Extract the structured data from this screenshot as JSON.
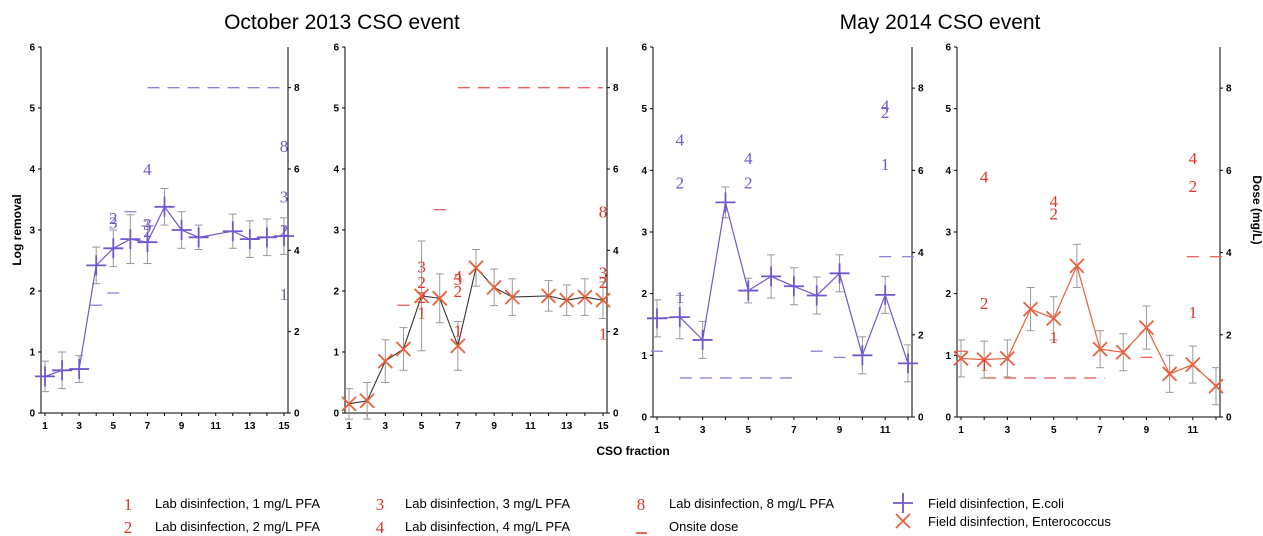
{
  "titles": {
    "left": "October 2013 CSO event",
    "right": "May 2014 CSO event"
  },
  "axis_labels": {
    "y_left": "Log removal",
    "y_right": "Dose (mg/L)",
    "x": "CSO fraction"
  },
  "colors": {
    "ecoli": "#6a5acd",
    "entero": "#e8603c",
    "lab_blue": "#6a5acd",
    "lab_red": "#e0352b",
    "dose_blue": "#8a82d8",
    "dose_red": "#e86060",
    "error_bar": "#999999",
    "axis": "#000000"
  },
  "legend": [
    {
      "symbol": "1",
      "label": "Lab disinfection, 1 mg/L PFA"
    },
    {
      "symbol": "2",
      "label": "Lab disinfection, 2 mg/L PFA"
    },
    {
      "symbol": "3",
      "label": "Lab disinfection, 3 mg/L PFA"
    },
    {
      "symbol": "4",
      "label": "Lab disinfection, 4 mg/L PFA"
    },
    {
      "symbol": "8",
      "label": "Lab disinfection, 8 mg/L PFA"
    },
    {
      "symbol": "dash",
      "label": "Onsite dose"
    },
    {
      "symbol": "plus",
      "label": "Field disinfection, E.coli"
    },
    {
      "symbol": "cross",
      "label": "Field disinfection, Enterococcus"
    }
  ],
  "chart_data": [
    {
      "type": "line",
      "event": "October 2013 CSO event",
      "organism": "E.coli",
      "marker": "plus",
      "xlim": [
        1,
        15
      ],
      "xticks": [
        "1",
        "3",
        "5",
        "7",
        "9",
        "11",
        "13",
        "15"
      ],
      "ylim": [
        0,
        6
      ],
      "yticks": [
        "0",
        "1",
        "2",
        "3",
        "4",
        "5",
        "6"
      ],
      "y2lim": [
        0,
        9
      ],
      "y2ticks": [
        "0",
        "2",
        "4",
        "6",
        "8"
      ],
      "field": {
        "x": [
          1,
          2,
          3,
          4,
          5,
          6,
          7,
          8,
          9,
          10,
          12,
          13,
          14,
          15
        ],
        "y": [
          0.6,
          0.7,
          0.72,
          2.42,
          2.7,
          2.85,
          2.8,
          3.38,
          3.0,
          2.88,
          2.98,
          2.85,
          2.88,
          2.9
        ],
        "err": [
          0.25,
          0.3,
          0.22,
          0.3,
          0.3,
          0.4,
          0.35,
          0.3,
          0.3,
          0.2,
          0.28,
          0.3,
          0.3,
          0.3
        ]
      },
      "lab": [
        {
          "x": 5,
          "label": "2",
          "y": 3.2
        },
        {
          "x": 5,
          "label": "3",
          "y": 3.12
        },
        {
          "x": 7,
          "label": "4",
          "y": 4.0
        },
        {
          "x": 7,
          "label": "3",
          "y": 3.1
        },
        {
          "x": 7,
          "label": "2",
          "y": 2.98
        },
        {
          "x": 15,
          "label": "8",
          "y": 4.38
        },
        {
          "x": 15,
          "label": "3",
          "y": 3.55
        },
        {
          "x": 15,
          "label": "2",
          "y": 3.0
        },
        {
          "x": 15,
          "label": "1",
          "y": 1.95
        }
      ],
      "onsite_dose": [
        {
          "x": 4,
          "dose": 2.65
        },
        {
          "x": 5,
          "dose": 2.95
        },
        {
          "x": 6,
          "dose": 4.95
        },
        {
          "x": 7,
          "dose": 4.6
        },
        {
          "x1": 7,
          "x2": 15,
          "dose": 8.0
        }
      ]
    },
    {
      "type": "line",
      "event": "October 2013 CSO event",
      "organism": "Enterococcus",
      "marker": "cross",
      "xlim": [
        1,
        15
      ],
      "xticks": [
        "1",
        "3",
        "5",
        "7",
        "9",
        "11",
        "13",
        "15"
      ],
      "ylim": [
        0,
        6
      ],
      "yticks": [
        "0",
        "1",
        "2",
        "3",
        "4",
        "5",
        "6"
      ],
      "y2lim": [
        0,
        9
      ],
      "y2ticks": [
        "0",
        "2",
        "4",
        "6",
        "8"
      ],
      "field": {
        "x": [
          1,
          2,
          3,
          4,
          5,
          6,
          7,
          8,
          9,
          10,
          12,
          13,
          14,
          15
        ],
        "y": [
          0.15,
          0.2,
          0.85,
          1.05,
          1.92,
          1.88,
          1.1,
          2.38,
          2.06,
          1.9,
          1.92,
          1.85,
          1.9,
          1.85
        ],
        "err": [
          0.25,
          0.3,
          0.35,
          0.35,
          0.9,
          0.4,
          0.4,
          0.3,
          0.3,
          0.3,
          0.25,
          0.25,
          0.3,
          0.3
        ]
      },
      "lab": [
        {
          "x": 5,
          "label": "3",
          "y": 2.4
        },
        {
          "x": 5,
          "label": "2",
          "y": 2.15
        },
        {
          "x": 5,
          "label": "2",
          "y": 1.9
        },
        {
          "x": 5,
          "label": "1",
          "y": 1.65
        },
        {
          "x": 7,
          "label": "4",
          "y": 2.25
        },
        {
          "x": 7,
          "label": "3",
          "y": 2.2
        },
        {
          "x": 7,
          "label": "2",
          "y": 2.0
        },
        {
          "x": 7,
          "label": "1",
          "y": 1.35
        },
        {
          "x": 15,
          "label": "8",
          "y": 3.3
        },
        {
          "x": 15,
          "label": "3",
          "y": 2.3
        },
        {
          "x": 15,
          "label": "2",
          "y": 2.15
        },
        {
          "x": 15,
          "label": "1",
          "y": 1.3
        }
      ],
      "onsite_dose": [
        {
          "x": 4,
          "dose": 2.65
        },
        {
          "x": 6,
          "dose": 5.0
        },
        {
          "x1": 7,
          "x2": 15,
          "dose": 8.0
        }
      ]
    },
    {
      "type": "line",
      "event": "May 2014 CSO event",
      "organism": "E.coli",
      "marker": "plus",
      "xlim": [
        1,
        12
      ],
      "xticks": [
        "1",
        "3",
        "5",
        "7",
        "9",
        "11"
      ],
      "ylim": [
        0,
        6
      ],
      "yticks": [
        "0",
        "1",
        "2",
        "3",
        "4",
        "5",
        "6"
      ],
      "y2lim": [
        0,
        9
      ],
      "y2ticks": [
        "0",
        "2",
        "4",
        "6",
        "8"
      ],
      "field": {
        "x": [
          1,
          2,
          3,
          4,
          5,
          6,
          7,
          8,
          9,
          10,
          11,
          12
        ],
        "y": [
          1.6,
          1.62,
          1.25,
          3.48,
          2.05,
          2.28,
          2.12,
          1.97,
          2.33,
          1.0,
          1.98,
          0.87
        ],
        "err": [
          0.3,
          0.35,
          0.3,
          0.25,
          0.2,
          0.35,
          0.3,
          0.3,
          0.3,
          0.3,
          0.3,
          0.3
        ]
      },
      "lab": [
        {
          "x": 2,
          "label": "4",
          "y": 4.5
        },
        {
          "x": 2,
          "label": "2",
          "y": 3.8
        },
        {
          "x": 2,
          "label": "1",
          "y": 1.95
        },
        {
          "x": 5,
          "label": "4",
          "y": 4.2
        },
        {
          "x": 5,
          "label": "2",
          "y": 3.8
        },
        {
          "x": 11,
          "label": "4",
          "y": 5.05
        },
        {
          "x": 11,
          "label": "2",
          "y": 4.95
        },
        {
          "x": 11,
          "label": "1",
          "y": 4.1
        }
      ],
      "onsite_dose": [
        {
          "x": 1,
          "dose": 1.6
        },
        {
          "x1": 2,
          "x2": 7.2,
          "dose": 0.95
        },
        {
          "x": 8,
          "dose": 1.6
        },
        {
          "x": 9,
          "dose": 1.45
        },
        {
          "x": 11,
          "dose": 3.9
        },
        {
          "x": 12,
          "dose": 3.9
        }
      ]
    },
    {
      "type": "line",
      "event": "May 2014 CSO event",
      "organism": "Enterococcus",
      "marker": "cross",
      "xlim": [
        1,
        12
      ],
      "xticks": [
        "1",
        "3",
        "5",
        "7",
        "9",
        "11"
      ],
      "ylim": [
        0,
        6
      ],
      "yticks": [
        "0",
        "1",
        "2",
        "3",
        "4",
        "5",
        "6"
      ],
      "y2lim": [
        0,
        9
      ],
      "y2ticks": [
        "0",
        "2",
        "4",
        "6",
        "8"
      ],
      "field": {
        "x": [
          1,
          2,
          3,
          4,
          5,
          6,
          7,
          8,
          9,
          10,
          11,
          12
        ],
        "y": [
          0.95,
          0.93,
          0.95,
          1.75,
          1.6,
          2.45,
          1.1,
          1.05,
          1.45,
          0.7,
          0.85,
          0.5
        ],
        "err": [
          0.3,
          0.3,
          0.3,
          0.35,
          0.35,
          0.35,
          0.3,
          0.3,
          0.35,
          0.3,
          0.3,
          0.3
        ]
      },
      "lab": [
        {
          "x": 2,
          "label": "4",
          "y": 3.9
        },
        {
          "x": 2,
          "label": "2",
          "y": 1.85
        },
        {
          "x": 2,
          "label": "1",
          "y": 0.85
        },
        {
          "x": 5,
          "label": "4",
          "y": 3.5
        },
        {
          "x": 5,
          "label": "2",
          "y": 3.3
        },
        {
          "x": 5,
          "label": "1",
          "y": 1.3
        },
        {
          "x": 11,
          "label": "4",
          "y": 4.2
        },
        {
          "x": 11,
          "label": "2",
          "y": 3.75
        },
        {
          "x": 11,
          "label": "1",
          "y": 1.7
        }
      ],
      "onsite_dose": [
        {
          "x": 1,
          "dose": 1.6
        },
        {
          "x1": 2,
          "x2": 7.2,
          "dose": 0.95
        },
        {
          "x": 9,
          "dose": 1.45
        },
        {
          "x": 11,
          "dose": 3.9
        },
        {
          "x": 12,
          "dose": 3.9
        }
      ]
    }
  ]
}
